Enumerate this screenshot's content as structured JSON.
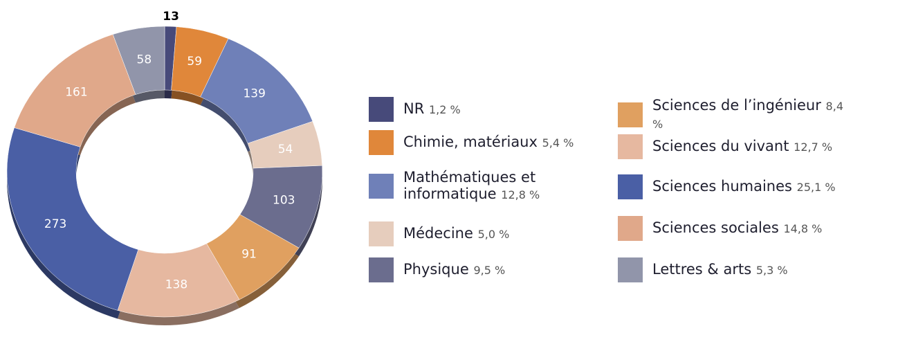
{
  "chart_data": {
    "type": "pie",
    "donut": true,
    "categories": [
      "NR",
      "Chimie, matériaux",
      "Mathématiques et informatique",
      "Médecine",
      "Physique",
      "Sciences de l’ingénieur",
      "Sciences du vivant",
      "Sciences humaines",
      "Sciences sociales",
      "Lettres & arts"
    ],
    "values": [
      13,
      59,
      139,
      54,
      103,
      91,
      138,
      273,
      161,
      58
    ],
    "percent_labels": [
      "1,2 %",
      "5,4 %",
      "12,8 %",
      "5,0 %",
      "9,5 %",
      "8,4 %",
      "12,7 %",
      "25,1 %",
      "14,8 %",
      "5,3 %"
    ],
    "colors": [
      "#474a7a",
      "#e0873a",
      "#6f80b8",
      "#e6cdbd",
      "#6b6d8e",
      "#e0a060",
      "#e6b8a0",
      "#4a5fa5",
      "#e0a88a",
      "#9195aa"
    ]
  }
}
